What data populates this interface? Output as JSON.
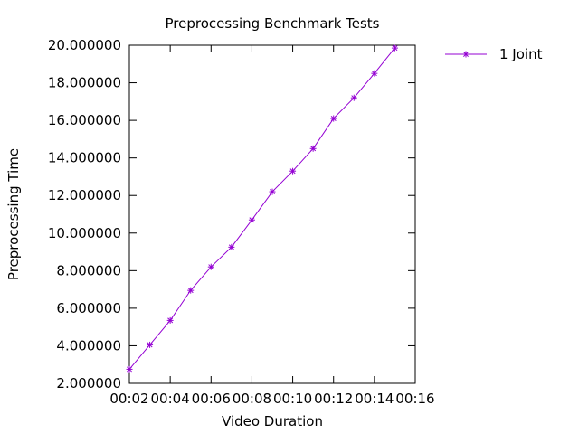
{
  "chart_data": {
    "type": "line",
    "title": "Preprocessing Benchmark Tests",
    "xlabel": "Video Duration",
    "ylabel": "Preprocessing Time",
    "x_ticks": [
      "00:02",
      "00:04",
      "00:06",
      "00:08",
      "00:10",
      "00:12",
      "00:14",
      "00:16"
    ],
    "xlim": [
      2,
      16
    ],
    "y_ticks": [
      "2.000000",
      "4.000000",
      "6.000000",
      "8.000000",
      "10.000000",
      "12.000000",
      "14.000000",
      "16.000000",
      "18.000000",
      "20.000000"
    ],
    "ylim": [
      2,
      20
    ],
    "grid": false,
    "legend_position": "outside-top-right",
    "series": [
      {
        "name": "1 Joint",
        "color": "#9400d3",
        "marker": "star",
        "x": [
          2,
          3,
          4,
          5,
          6,
          7,
          8,
          9,
          10,
          11,
          12,
          13,
          14,
          15
        ],
        "y": [
          2.75,
          4.05,
          5.35,
          6.95,
          8.2,
          9.25,
          10.7,
          12.2,
          13.3,
          14.5,
          16.1,
          17.2,
          18.5,
          19.85
        ]
      }
    ]
  }
}
